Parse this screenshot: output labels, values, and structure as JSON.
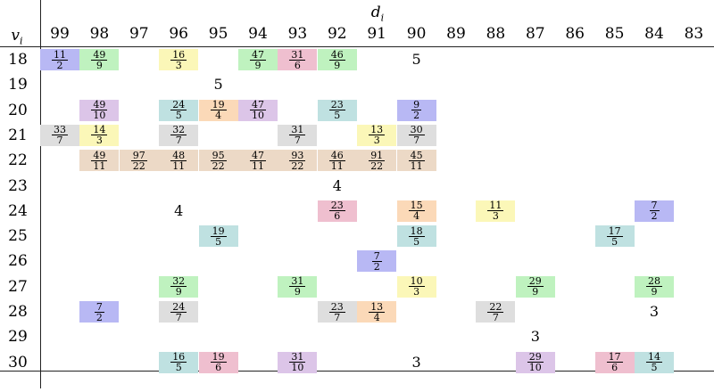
{
  "colors": {
    "blue": "#b8b8f4",
    "green": "#bff2bf",
    "yellow": "#fbf7b8",
    "pink": "#efbfcf",
    "purple": "#dcc5e8",
    "teal": "#bfe1e1",
    "orange": "#fbd9b8",
    "gray": "#dedede",
    "tan": "#ecd9c6"
  },
  "header": {
    "row_axis_label": "v",
    "row_axis_sub": "i",
    "col_axis_label": "d",
    "col_axis_sub": "i",
    "columns": [
      "99",
      "98",
      "97",
      "96",
      "95",
      "94",
      "93",
      "92",
      "91",
      "90",
      "89",
      "88",
      "87",
      "86",
      "85",
      "84",
      "83"
    ]
  },
  "rows": [
    {
      "v": "18",
      "cells": [
        {
          "col": "99",
          "num": "11",
          "den": "2",
          "color": "blue"
        },
        {
          "col": "98",
          "num": "49",
          "den": "9",
          "color": "green"
        },
        {
          "col": "96",
          "num": "16",
          "den": "3",
          "color": "yellow"
        },
        {
          "col": "94",
          "num": "47",
          "den": "9",
          "color": "green"
        },
        {
          "col": "93",
          "num": "31",
          "den": "6",
          "color": "pink"
        },
        {
          "col": "92",
          "num": "46",
          "den": "9",
          "color": "green"
        },
        {
          "col": "90",
          "text": "5"
        }
      ]
    },
    {
      "v": "19",
      "cells": [
        {
          "col": "95",
          "text": "5"
        }
      ]
    },
    {
      "v": "20",
      "cells": [
        {
          "col": "98",
          "num": "49",
          "den": "10",
          "color": "purple"
        },
        {
          "col": "96",
          "num": "24",
          "den": "5",
          "color": "teal"
        },
        {
          "col": "95",
          "num": "19",
          "den": "4",
          "color": "orange"
        },
        {
          "col": "94",
          "num": "47",
          "den": "10",
          "color": "purple"
        },
        {
          "col": "92",
          "num": "23",
          "den": "5",
          "color": "teal"
        },
        {
          "col": "90",
          "num": "9",
          "den": "2",
          "color": "blue"
        }
      ]
    },
    {
      "v": "21",
      "cells": [
        {
          "col": "99",
          "num": "33",
          "den": "7",
          "color": "gray"
        },
        {
          "col": "98",
          "num": "14",
          "den": "3",
          "color": "yellow"
        },
        {
          "col": "96",
          "num": "32",
          "den": "7",
          "color": "gray"
        },
        {
          "col": "93",
          "num": "31",
          "den": "7",
          "color": "gray"
        },
        {
          "col": "91",
          "num": "13",
          "den": "3",
          "color": "yellow"
        },
        {
          "col": "90",
          "num": "30",
          "den": "7",
          "color": "gray"
        }
      ]
    },
    {
      "v": "22",
      "cells": [
        {
          "col": "98",
          "num": "49",
          "den": "11",
          "color": "tan"
        },
        {
          "col": "97",
          "num": "97",
          "den": "22",
          "color": "tan"
        },
        {
          "col": "96",
          "num": "48",
          "den": "11",
          "color": "tan"
        },
        {
          "col": "95",
          "num": "95",
          "den": "22",
          "color": "tan"
        },
        {
          "col": "94",
          "num": "47",
          "den": "11",
          "color": "tan"
        },
        {
          "col": "93",
          "num": "93",
          "den": "22",
          "color": "tan"
        },
        {
          "col": "92",
          "num": "46",
          "den": "11",
          "color": "tan"
        },
        {
          "col": "91",
          "num": "91",
          "den": "22",
          "color": "tan"
        },
        {
          "col": "90",
          "num": "45",
          "den": "11",
          "color": "tan"
        }
      ]
    },
    {
      "v": "23",
      "cells": [
        {
          "col": "92",
          "text": "4"
        }
      ]
    },
    {
      "v": "24",
      "cells": [
        {
          "col": "96",
          "text": "4"
        },
        {
          "col": "92",
          "num": "23",
          "den": "6",
          "color": "pink"
        },
        {
          "col": "90",
          "num": "15",
          "den": "4",
          "color": "orange"
        },
        {
          "col": "88",
          "num": "11",
          "den": "3",
          "color": "yellow"
        },
        {
          "col": "84",
          "num": "7",
          "den": "2",
          "color": "blue"
        }
      ]
    },
    {
      "v": "25",
      "cells": [
        {
          "col": "95",
          "num": "19",
          "den": "5",
          "color": "teal"
        },
        {
          "col": "90",
          "num": "18",
          "den": "5",
          "color": "teal"
        },
        {
          "col": "85",
          "num": "17",
          "den": "5",
          "color": "teal"
        }
      ]
    },
    {
      "v": "26",
      "cells": [
        {
          "col": "91",
          "num": "7",
          "den": "2",
          "color": "blue"
        }
      ]
    },
    {
      "v": "27",
      "cells": [
        {
          "col": "96",
          "num": "32",
          "den": "9",
          "color": "green"
        },
        {
          "col": "93",
          "num": "31",
          "den": "9",
          "color": "green"
        },
        {
          "col": "90",
          "num": "10",
          "den": "3",
          "color": "yellow"
        },
        {
          "col": "87",
          "num": "29",
          "den": "9",
          "color": "green"
        },
        {
          "col": "84",
          "num": "28",
          "den": "9",
          "color": "green"
        }
      ]
    },
    {
      "v": "28",
      "cells": [
        {
          "col": "98",
          "num": "7",
          "den": "2",
          "color": "blue"
        },
        {
          "col": "96",
          "num": "24",
          "den": "7",
          "color": "gray"
        },
        {
          "col": "92",
          "num": "23",
          "den": "7",
          "color": "gray"
        },
        {
          "col": "91",
          "num": "13",
          "den": "4",
          "color": "orange"
        },
        {
          "col": "88",
          "num": "22",
          "den": "7",
          "color": "gray"
        },
        {
          "col": "84",
          "text": "3"
        }
      ]
    },
    {
      "v": "29",
      "cells": [
        {
          "col": "87",
          "text": "3"
        }
      ]
    },
    {
      "v": "30",
      "cells": [
        {
          "col": "96",
          "num": "16",
          "den": "5",
          "color": "teal"
        },
        {
          "col": "95",
          "num": "19",
          "den": "6",
          "color": "pink"
        },
        {
          "col": "93",
          "num": "31",
          "den": "10",
          "color": "purple"
        },
        {
          "col": "90",
          "text": "3"
        },
        {
          "col": "87",
          "num": "29",
          "den": "10",
          "color": "purple"
        },
        {
          "col": "85",
          "num": "17",
          "den": "6",
          "color": "pink"
        },
        {
          "col": "84",
          "num": "14",
          "den": "5",
          "color": "teal"
        }
      ]
    }
  ]
}
